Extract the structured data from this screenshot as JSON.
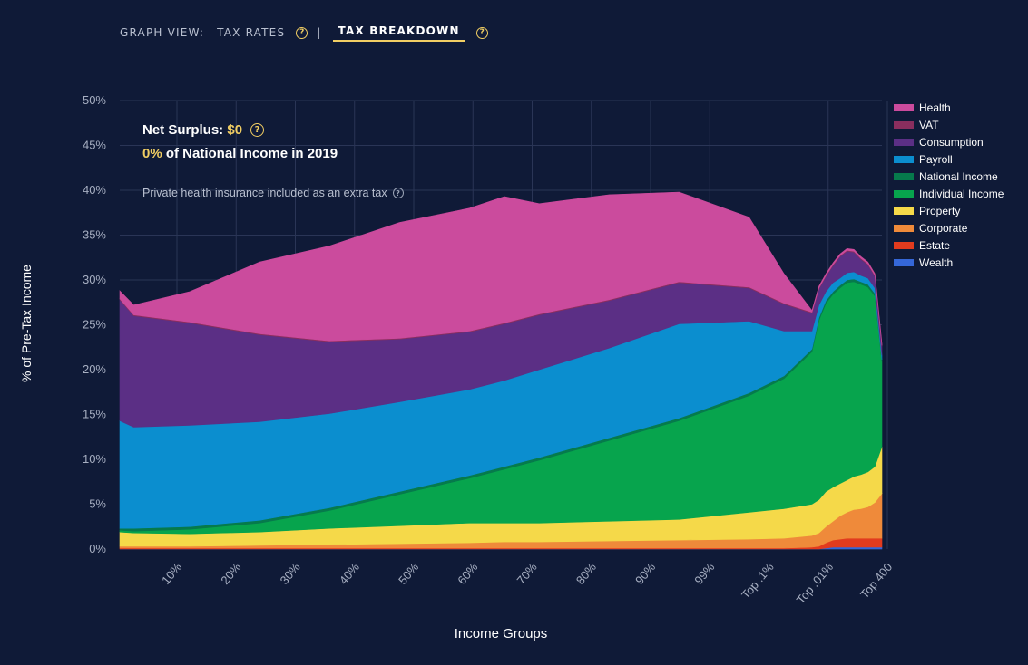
{
  "nav": {
    "label": "GRAPH VIEW:",
    "tab_rates": "TAX RATES",
    "separator": "|",
    "tab_breakdown": "TAX BREAKDOWN",
    "help_glyph": "?"
  },
  "overlay": {
    "surplus_label": "Net Surplus:",
    "surplus_value": "$0",
    "ni_value": "0%",
    "ni_text": "of National Income in 2019",
    "note": "Private health insurance included as an extra tax"
  },
  "colors": {
    "background": "#0f1a37",
    "accent": "#f1ce63"
  },
  "chart_data": {
    "type": "area",
    "stacked": true,
    "xlabel": "Income Groups",
    "ylabel": "% of Pre-Tax Income",
    "ylim": [
      0,
      50
    ],
    "yticks": [
      "0%",
      "5%",
      "10%",
      "15%",
      "20%",
      "25%",
      "30%",
      "35%",
      "40%",
      "45%",
      "50%"
    ],
    "x_tick_labels": [
      "10%",
      "20%",
      "30%",
      "40%",
      "50%",
      "60%",
      "70%",
      "80%",
      "90%",
      "99%",
      "Top .1%",
      "Top .01%",
      "Top 400"
    ],
    "grid": true,
    "legend_position": "right",
    "x": [
      0,
      2,
      10,
      20,
      30,
      40,
      50,
      55,
      60,
      70,
      80,
      90,
      95,
      99,
      100,
      101,
      102,
      103,
      104,
      105,
      106,
      107,
      108,
      109
    ],
    "series": [
      {
        "name": "Wealth",
        "color": "#3567d8",
        "values": [
          0,
          0,
          0,
          0,
          0,
          0,
          0,
          0,
          0,
          0,
          0,
          0,
          0,
          0,
          0,
          0.1,
          0.2,
          0.2,
          0.2,
          0.2,
          0.2,
          0.2,
          0.2,
          0.2
        ]
      },
      {
        "name": "Estate",
        "color": "#e23b1e",
        "values": [
          0.1,
          0.1,
          0.1,
          0.1,
          0.1,
          0.1,
          0.1,
          0.1,
          0.1,
          0.1,
          0.1,
          0.1,
          0.1,
          0.2,
          0.3,
          0.6,
          0.8,
          0.9,
          1.0,
          1.0,
          1.0,
          1.0,
          1.0,
          1.0
        ]
      },
      {
        "name": "Corporate",
        "color": "#ef8a3a",
        "values": [
          0.2,
          0.2,
          0.2,
          0.3,
          0.4,
          0.5,
          0.6,
          0.7,
          0.7,
          0.8,
          0.9,
          1.0,
          1.1,
          1.3,
          1.5,
          1.8,
          2.1,
          2.6,
          2.9,
          3.2,
          3.3,
          3.5,
          4.0,
          5.0
        ]
      },
      {
        "name": "Property",
        "color": "#f5d949",
        "values": [
          1.6,
          1.5,
          1.4,
          1.5,
          1.8,
          2.0,
          2.2,
          2.1,
          2.1,
          2.2,
          2.3,
          3.0,
          3.3,
          3.5,
          3.7,
          3.9,
          3.8,
          3.6,
          3.6,
          3.7,
          3.8,
          3.9,
          4.0,
          5.2
        ]
      },
      {
        "name": "Individual Income",
        "color": "#07a44d",
        "values": [
          0.2,
          0.2,
          0.5,
          1.0,
          2.0,
          3.5,
          5.0,
          6.0,
          7.0,
          9.0,
          11.0,
          13.0,
          14.5,
          17.0,
          20.0,
          21.0,
          21.5,
          21.8,
          22.0,
          21.7,
          21.2,
          20.6,
          19.0,
          9.5
        ]
      },
      {
        "name": "National Income",
        "color": "#067a4c",
        "values": [
          0.2,
          0.3,
          0.3,
          0.3,
          0.3,
          0.3,
          0.3,
          0.3,
          0.3,
          0.3,
          0.3,
          0.3,
          0.3,
          0.3,
          0.3,
          0.3,
          0.3,
          0.3,
          0.3,
          0.3,
          0.3,
          0.3,
          0.3,
          0.2
        ]
      },
      {
        "name": "Payroll",
        "color": "#0b8ecf",
        "values": [
          12.0,
          11.3,
          11.3,
          11.0,
          10.5,
          10.0,
          9.6,
          9.6,
          9.8,
          10.0,
          10.5,
          8.0,
          5.0,
          2.0,
          1.4,
          1.0,
          1.0,
          0.8,
          0.8,
          0.8,
          0.7,
          0.7,
          0.6,
          0.5
        ]
      },
      {
        "name": "Consumption",
        "color": "#5b2f85",
        "values": [
          13.5,
          12.4,
          11.4,
          9.7,
          8.0,
          7.0,
          6.4,
          6.3,
          6.1,
          5.3,
          4.6,
          3.7,
          3.0,
          2.0,
          1.8,
          1.7,
          1.9,
          2.4,
          2.4,
          2.2,
          1.8,
          1.5,
          1.3,
          1.0
        ]
      },
      {
        "name": "VAT",
        "color": "#8a2e5e",
        "values": [
          0.1,
          0.1,
          0.1,
          0.1,
          0.1,
          0.1,
          0.1,
          0.1,
          0.1,
          0.1,
          0.1,
          0.1,
          0.1,
          0.1,
          0.1,
          0.1,
          0.1,
          0.1,
          0.1,
          0.1,
          0.1,
          0.1,
          0.1,
          0.1
        ]
      },
      {
        "name": "Health",
        "color": "#cb4b9d",
        "values": [
          0.9,
          1.1,
          3.4,
          8.0,
          10.6,
          12.9,
          13.7,
          14.1,
          12.3,
          11.7,
          10.0,
          7.8,
          3.3,
          0.2,
          0.2,
          0.2,
          0.2,
          0.2,
          0.2,
          0.2,
          0.2,
          0.2,
          0.2,
          0.2
        ]
      }
    ]
  }
}
